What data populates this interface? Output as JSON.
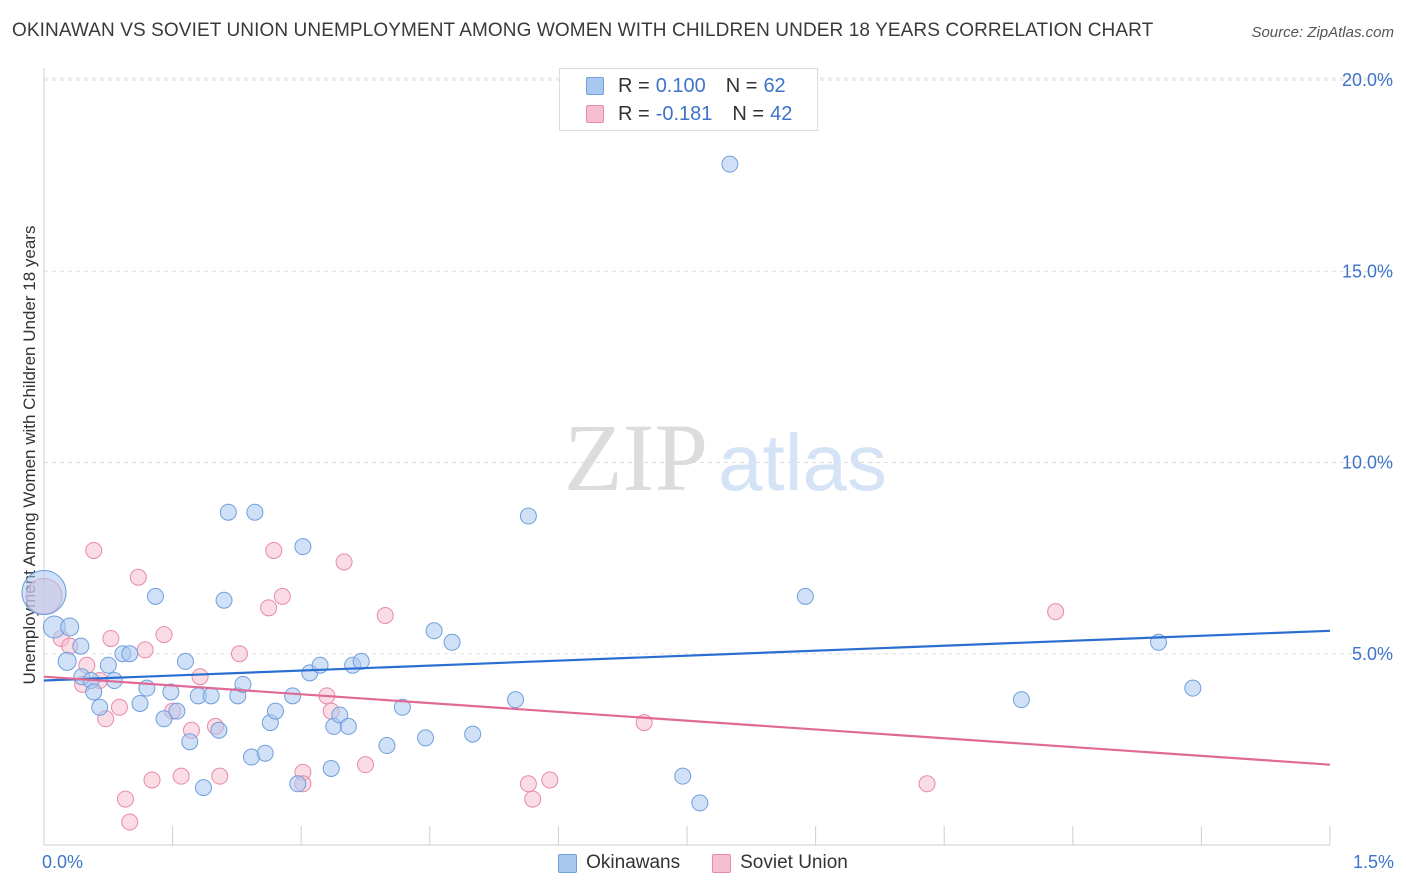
{
  "title": "OKINAWAN VS SOVIET UNION UNEMPLOYMENT AMONG WOMEN WITH CHILDREN UNDER 18 YEARS CORRELATION CHART",
  "source": "Source: ZipAtlas.com",
  "watermark": {
    "zip": "ZIP",
    "atlas": "atlas"
  },
  "legend": {
    "row1": {
      "r_label": "R =",
      "r_value": "0.100",
      "n_label": "N =",
      "n_value": "62"
    },
    "row2": {
      "r_label": "R =",
      "r_value": "-0.181",
      "n_label": "N =",
      "n_value": "42"
    }
  },
  "bottom_legend": {
    "series1": "Okinawans",
    "series2": "Soviet Union"
  },
  "colors": {
    "okinawans_fill": "#a9c8f0",
    "okinawans_stroke": "#6f9fdc",
    "okinawans_line": "#2a6fd0",
    "soviet_fill": "#f6bfd0",
    "soviet_stroke": "#e88aa8",
    "soviet_line": "#e06a95",
    "tick_text": "#3d74c9",
    "grid": "#dedede"
  },
  "chart_data": {
    "type": "scatter",
    "title": "OKINAWAN VS SOVIET UNION UNEMPLOYMENT AMONG WOMEN WITH CHILDREN UNDER 18 YEARS CORRELATION CHART",
    "xlabel": "",
    "ylabel": "Unemployment Among Women with Children Under 18 years",
    "xlim": [
      0,
      1.5
    ],
    "ylim": [
      0,
      20.5
    ],
    "x_tick_labels": [
      "0.0%",
      "1.5%"
    ],
    "y_ticks": [
      5,
      10,
      15,
      20
    ],
    "y_tick_labels": [
      "5.0%",
      "10.0%",
      "15.0%",
      "20.0%"
    ],
    "grid": true,
    "legend_position": "top-center",
    "series": [
      {
        "name": "Okinawans",
        "R": 0.1,
        "N": 62,
        "trend": [
          [
            0,
            4.3
          ],
          [
            1.5,
            5.6
          ]
        ],
        "points": [
          [
            0.0,
            6.6,
            22
          ],
          [
            0.012,
            5.7,
            11
          ],
          [
            0.03,
            5.7,
            9
          ],
          [
            0.027,
            4.8,
            9
          ],
          [
            0.043,
            5.2,
            8
          ],
          [
            0.044,
            4.4,
            8
          ],
          [
            0.055,
            4.3,
            8
          ],
          [
            0.058,
            4.0,
            8
          ],
          [
            0.065,
            3.6,
            8
          ],
          [
            0.075,
            4.7,
            8
          ],
          [
            0.082,
            4.3,
            8
          ],
          [
            0.092,
            5.0,
            8
          ],
          [
            0.1,
            5.0,
            8
          ],
          [
            0.12,
            4.1,
            8
          ],
          [
            0.13,
            6.5,
            8
          ],
          [
            0.112,
            3.7,
            8
          ],
          [
            0.14,
            3.3,
            8
          ],
          [
            0.148,
            4.0,
            8
          ],
          [
            0.155,
            3.5,
            8
          ],
          [
            0.165,
            4.8,
            8
          ],
          [
            0.17,
            2.7,
            8
          ],
          [
            0.18,
            3.9,
            8
          ],
          [
            0.186,
            1.5,
            8
          ],
          [
            0.195,
            3.9,
            8
          ],
          [
            0.204,
            3.0,
            8
          ],
          [
            0.21,
            6.4,
            8
          ],
          [
            0.215,
            8.7,
            8
          ],
          [
            0.226,
            3.9,
            8
          ],
          [
            0.232,
            4.2,
            8
          ],
          [
            0.242,
            2.3,
            8
          ],
          [
            0.246,
            8.7,
            8
          ],
          [
            0.258,
            2.4,
            8
          ],
          [
            0.264,
            3.2,
            8
          ],
          [
            0.27,
            3.5,
            8
          ],
          [
            0.29,
            3.9,
            8
          ],
          [
            0.296,
            1.6,
            8
          ],
          [
            0.302,
            7.8,
            8
          ],
          [
            0.31,
            4.5,
            8
          ],
          [
            0.322,
            4.7,
            8
          ],
          [
            0.335,
            2.0,
            8
          ],
          [
            0.338,
            3.1,
            8
          ],
          [
            0.345,
            3.4,
            8
          ],
          [
            0.355,
            3.1,
            8
          ],
          [
            0.36,
            4.7,
            8
          ],
          [
            0.37,
            4.8,
            8
          ],
          [
            0.4,
            2.6,
            8
          ],
          [
            0.418,
            3.6,
            8
          ],
          [
            0.445,
            2.8,
            8
          ],
          [
            0.455,
            5.6,
            8
          ],
          [
            0.476,
            5.3,
            8
          ],
          [
            0.5,
            2.9,
            8
          ],
          [
            0.55,
            3.8,
            8
          ],
          [
            0.565,
            8.6,
            8
          ],
          [
            0.745,
            1.8,
            8
          ],
          [
            0.765,
            1.1,
            8
          ],
          [
            0.8,
            17.8,
            8
          ],
          [
            0.888,
            6.5,
            8
          ],
          [
            1.14,
            3.8,
            8
          ],
          [
            1.3,
            5.3,
            8
          ],
          [
            1.34,
            4.1,
            8
          ]
        ]
      },
      {
        "name": "Soviet Union",
        "R": -0.181,
        "N": 42,
        "trend": [
          [
            0,
            4.4
          ],
          [
            1.5,
            2.1
          ]
        ],
        "points": [
          [
            0.0,
            6.5,
            18
          ],
          [
            0.02,
            5.4,
            8
          ],
          [
            0.03,
            5.2,
            8
          ],
          [
            0.045,
            4.2,
            8
          ],
          [
            0.05,
            4.7,
            8
          ],
          [
            0.058,
            7.7,
            8
          ],
          [
            0.065,
            4.3,
            8
          ],
          [
            0.072,
            3.3,
            8
          ],
          [
            0.078,
            5.4,
            8
          ],
          [
            0.088,
            3.6,
            8
          ],
          [
            0.095,
            1.2,
            8
          ],
          [
            0.1,
            0.6,
            8
          ],
          [
            0.11,
            7.0,
            8
          ],
          [
            0.118,
            5.1,
            8
          ],
          [
            0.126,
            1.7,
            8
          ],
          [
            0.14,
            5.5,
            8
          ],
          [
            0.15,
            3.5,
            8
          ],
          [
            0.16,
            1.8,
            8
          ],
          [
            0.172,
            3.0,
            8
          ],
          [
            0.182,
            4.4,
            8
          ],
          [
            0.2,
            3.1,
            8
          ],
          [
            0.205,
            1.8,
            8
          ],
          [
            0.228,
            5.0,
            8
          ],
          [
            0.262,
            6.2,
            8
          ],
          [
            0.268,
            7.7,
            8
          ],
          [
            0.278,
            6.5,
            8
          ],
          [
            0.302,
            1.9,
            8
          ],
          [
            0.302,
            1.6,
            8
          ],
          [
            0.335,
            3.5,
            8
          ],
          [
            0.33,
            3.9,
            8
          ],
          [
            0.35,
            7.4,
            8
          ],
          [
            0.375,
            2.1,
            8
          ],
          [
            0.398,
            6.0,
            8
          ],
          [
            0.565,
            1.6,
            8
          ],
          [
            0.57,
            1.2,
            8
          ],
          [
            0.59,
            1.7,
            8
          ],
          [
            0.7,
            3.2,
            8
          ],
          [
            1.03,
            1.6,
            8
          ],
          [
            1.18,
            6.1,
            8
          ]
        ]
      }
    ]
  }
}
